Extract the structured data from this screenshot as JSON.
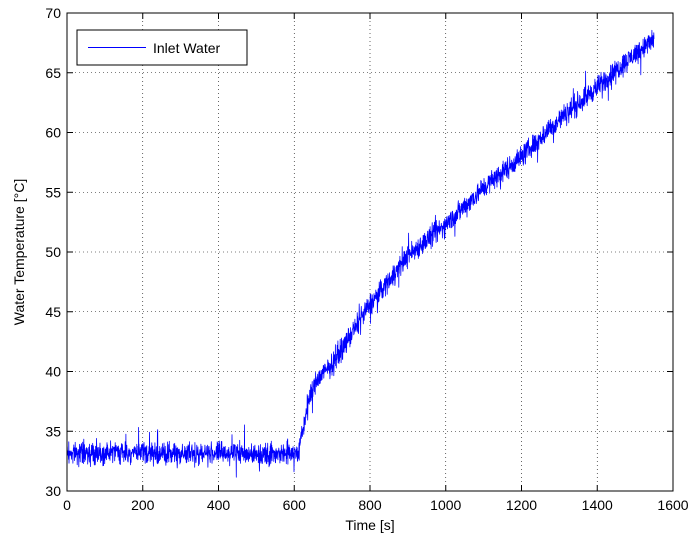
{
  "chart_data": {
    "type": "line",
    "title": "",
    "xlabel": "Time [s]",
    "ylabel": "Water Temperature [°C]",
    "xlim": [
      0,
      1600
    ],
    "ylim": [
      30,
      70
    ],
    "x_ticks": [
      0,
      200,
      400,
      600,
      800,
      1000,
      1200,
      1400,
      1600
    ],
    "y_ticks": [
      30,
      35,
      40,
      45,
      50,
      55,
      60,
      65,
      70
    ],
    "grid": true,
    "legend": {
      "placement": "top-left",
      "entries": [
        "Inlet Water"
      ]
    },
    "colors": {
      "series": "#0000ff",
      "axes": "#000000",
      "grid": "#000000"
    },
    "series": [
      {
        "name": "Inlet Water",
        "noise_amplitude": 1.0,
        "x": [
          0,
          100,
          200,
          300,
          400,
          500,
          600,
          612,
          625,
          640,
          660,
          700,
          800,
          900,
          1000,
          1100,
          1200,
          1300,
          1400,
          1500,
          1550
        ],
        "y": [
          33.2,
          33.2,
          33.2,
          33.1,
          33.2,
          33.1,
          33.2,
          33.2,
          35.5,
          37.8,
          39.3,
          40.6,
          45.6,
          49.7,
          52.3,
          55.4,
          58.0,
          61.1,
          63.8,
          66.6,
          67.8
        ]
      }
    ]
  }
}
